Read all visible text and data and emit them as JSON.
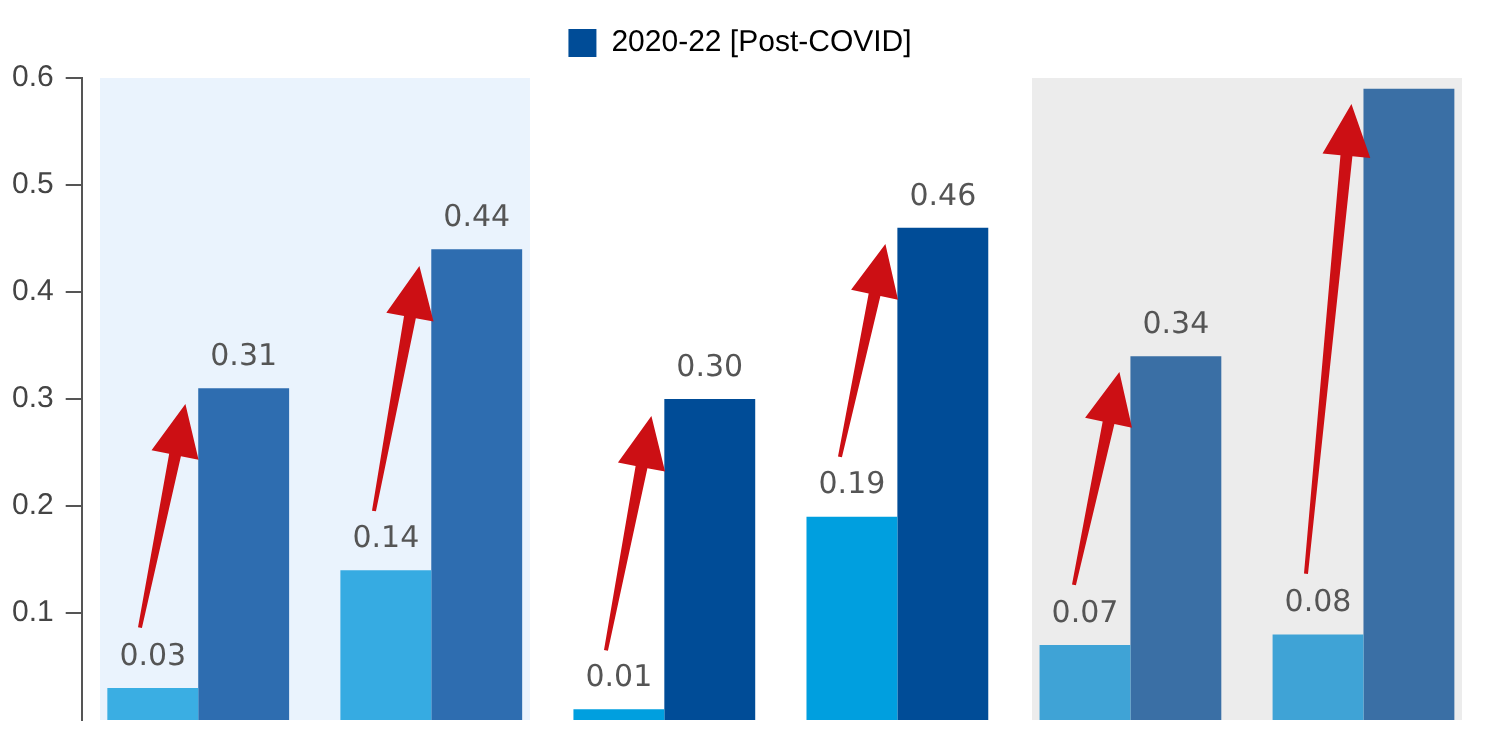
{
  "chart_data": {
    "type": "bar",
    "categories": [
      null,
      null,
      null,
      null,
      null,
      null
    ],
    "series": [
      {
        "colors": [
          "#3aaee3",
          "#36abe2",
          "#009fdf",
          "#009fdf",
          "#3fa3d6",
          "#3fa3d6"
        ],
        "color": "#36abe2",
        "values": [
          0.03,
          0.14,
          0.01,
          0.19,
          0.07,
          0.08
        ],
        "value_labels": [
          "0.03",
          "0.14",
          "0.01",
          "0.19",
          "0.07",
          "0.08"
        ]
      },
      {
        "name": "2020-22 [Post-COVID]",
        "colors": [
          "#2e6db0",
          "#2e6db0",
          "#004c97",
          "#004c97",
          "#3a6fa5",
          "#3a6fa5"
        ],
        "color": "#004c97",
        "values": [
          0.31,
          0.44,
          0.3,
          0.46,
          0.34,
          0.59
        ],
        "value_labels": [
          "0.31",
          "0.44",
          "0.30",
          "0.46",
          "0.34",
          null
        ]
      }
    ],
    "ylim": [
      0,
      0.6
    ],
    "yticks": [
      0.1,
      0.2,
      0.3,
      0.4,
      0.5,
      0.6
    ],
    "tick_labels": "y",
    "grid": false,
    "legend": "top"
  }
}
